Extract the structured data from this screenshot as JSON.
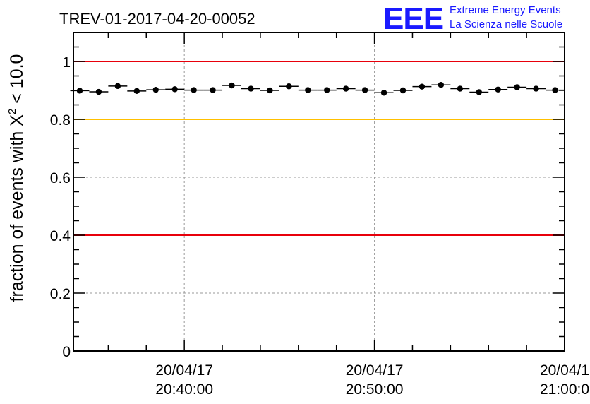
{
  "chart_data": {
    "type": "scatter",
    "title": "TREV-01-2017-04-20-00052",
    "ylabel": {
      "prefix": "fraction of events with ",
      "symbol": "X",
      "sup": "2",
      "suffix": " < 10.0"
    },
    "xlabel": "",
    "ylim": [
      0,
      1.1
    ],
    "xlim": [
      "20:34:10",
      "21:00:00"
    ],
    "grid": true,
    "y_ticks": [
      "0",
      "0.2",
      "0.4",
      "0.6",
      "0.8",
      "1"
    ],
    "x_ticks": [
      {
        "date": "20/04/17",
        "time": "20:40:00"
      },
      {
        "date": "20/04/17",
        "time": "20:50:00"
      },
      {
        "date": "20/04/1",
        "time": "21:00:0"
      }
    ],
    "reference_lines": [
      {
        "y": 1.0,
        "color": "#e8000b"
      },
      {
        "y": 0.8,
        "color": "#ffc000"
      },
      {
        "y": 0.4,
        "color": "#e8000b"
      }
    ],
    "series": [
      {
        "color": "#000000",
        "x": [
          "20:34:30",
          "20:35:30",
          "20:36:30",
          "20:37:30",
          "20:38:30",
          "20:39:30",
          "20:40:30",
          "20:41:30",
          "20:42:30",
          "20:43:30",
          "20:44:30",
          "20:45:30",
          "20:46:30",
          "20:47:30",
          "20:48:30",
          "20:49:30",
          "20:50:30",
          "20:51:30",
          "20:52:30",
          "20:53:30",
          "20:54:30",
          "20:55:30",
          "20:56:30",
          "20:57:30",
          "20:58:30",
          "20:59:30"
        ],
        "y": [
          0.899,
          0.895,
          0.915,
          0.898,
          0.902,
          0.904,
          0.901,
          0.901,
          0.917,
          0.906,
          0.9,
          0.914,
          0.901,
          0.901,
          0.906,
          0.901,
          0.892,
          0.9,
          0.913,
          0.919,
          0.906,
          0.894,
          0.903,
          0.911,
          0.906,
          0.901
        ]
      }
    ]
  },
  "logo": {
    "mark": "EEE",
    "line1": "Extreme Energy Events",
    "line2": "La Scienza nelle Scuole",
    "color": "#1a1aff"
  }
}
